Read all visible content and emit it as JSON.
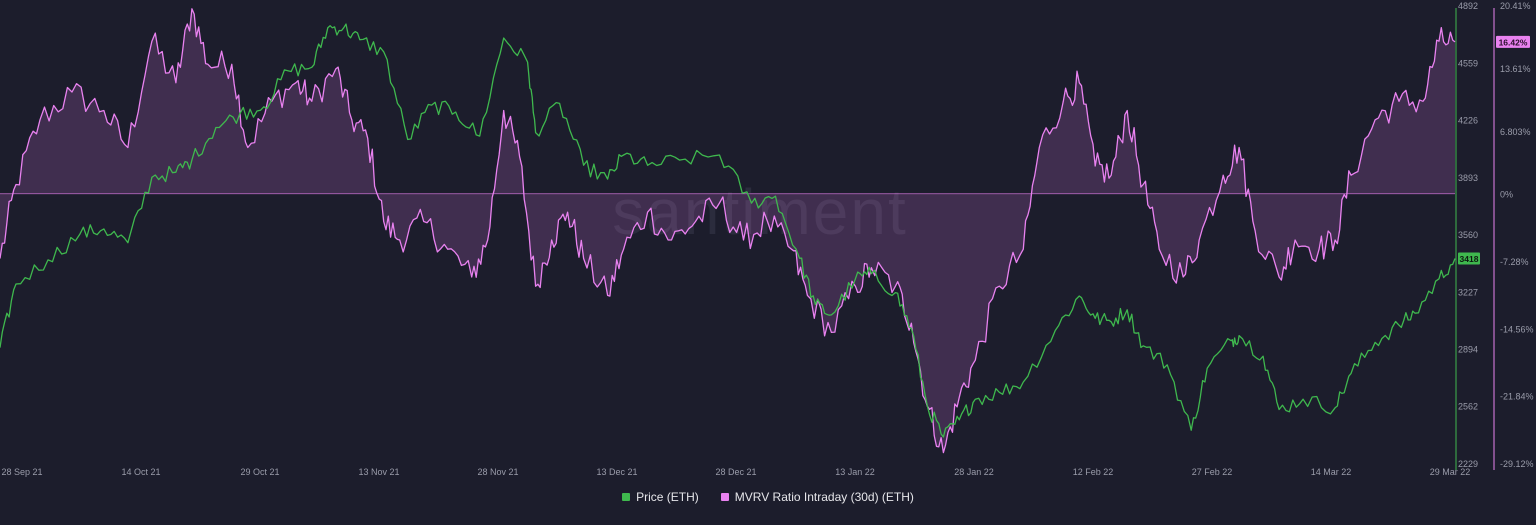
{
  "chart_data": {
    "type": "line",
    "watermark": "santiment",
    "x_tick_labels": [
      "28 Sep 21",
      "14 Oct 21",
      "29 Oct 21",
      "13 Nov 21",
      "28 Nov 21",
      "13 Dec 21",
      "28 Dec 21",
      "13 Jan 22",
      "28 Jan 22",
      "12 Feb 22",
      "27 Feb 22",
      "14 Mar 22",
      "29 Mar 22"
    ],
    "x_range": [
      "2021-09-28",
      "2022-03-29"
    ],
    "left_axis": {
      "series": "Price (ETH)",
      "ticks": [
        4892,
        4559,
        4226,
        3893,
        3560,
        3227,
        2894,
        2562,
        2229
      ],
      "range": [
        2229,
        4892
      ],
      "current_value_label": "3418"
    },
    "right_axis": {
      "series": "MVRV Ratio Intraday (30d) (ETH)",
      "ticks": [
        "20.41%",
        "13.61%",
        "6.803%",
        "0%",
        "-7.28%",
        "-14.56%",
        "-21.84%",
        "-29.12%"
      ],
      "range": [
        -29.12,
        20.41
      ],
      "current_value_label": "16.42%"
    },
    "series": [
      {
        "name": "Price (ETH)",
        "axis": "left",
        "color": "#3fb84e",
        "style": "line",
        "keypoints": [
          [
            "2021-09-28",
            2900
          ],
          [
            "2021-09-30",
            3270
          ],
          [
            "2021-10-04",
            3410
          ],
          [
            "2021-10-08",
            3560
          ],
          [
            "2021-10-11",
            3590
          ],
          [
            "2021-10-14",
            3510
          ],
          [
            "2021-10-17",
            3890
          ],
          [
            "2021-10-20",
            3920
          ],
          [
            "2021-10-22",
            3990
          ],
          [
            "2021-10-25",
            4180
          ],
          [
            "2021-10-28",
            4260
          ],
          [
            "2021-10-31",
            4300
          ],
          [
            "2021-11-03",
            4510
          ],
          [
            "2021-11-06",
            4530
          ],
          [
            "2021-11-08",
            4760
          ],
          [
            "2021-11-10",
            4760
          ],
          [
            "2021-11-12",
            4690
          ],
          [
            "2021-11-15",
            4620
          ],
          [
            "2021-11-18",
            4110
          ],
          [
            "2021-11-21",
            4310
          ],
          [
            "2021-11-24",
            4270
          ],
          [
            "2021-11-27",
            4130
          ],
          [
            "2021-11-30",
            4700
          ],
          [
            "2021-12-03",
            4560
          ],
          [
            "2021-12-04",
            4150
          ],
          [
            "2021-12-07",
            4320
          ],
          [
            "2021-12-10",
            3960
          ],
          [
            "2021-12-13",
            3880
          ],
          [
            "2021-12-15",
            4020
          ],
          [
            "2021-12-18",
            3960
          ],
          [
            "2021-12-22",
            3990
          ],
          [
            "2021-12-27",
            4020
          ],
          [
            "2021-12-31",
            3740
          ],
          [
            "2022-01-03",
            3780
          ],
          [
            "2022-01-06",
            3420
          ],
          [
            "2022-01-08",
            3150
          ],
          [
            "2022-01-10",
            3090
          ],
          [
            "2022-01-13",
            3300
          ],
          [
            "2022-01-15",
            3330
          ],
          [
            "2022-01-18",
            3220
          ],
          [
            "2022-01-20",
            3010
          ],
          [
            "2022-01-22",
            2560
          ],
          [
            "2022-01-24",
            2380
          ],
          [
            "2022-01-26",
            2480
          ],
          [
            "2022-01-28",
            2600
          ],
          [
            "2022-01-31",
            2640
          ],
          [
            "2022-02-03",
            2700
          ],
          [
            "2022-02-07",
            3000
          ],
          [
            "2022-02-10",
            3200
          ],
          [
            "2022-02-12",
            3070
          ],
          [
            "2022-02-14",
            3050
          ],
          [
            "2022-02-16",
            3120
          ],
          [
            "2022-02-18",
            2910
          ],
          [
            "2022-02-21",
            2800
          ],
          [
            "2022-02-24",
            2420
          ],
          [
            "2022-02-26",
            2780
          ],
          [
            "2022-03-01",
            2940
          ],
          [
            "2022-03-02",
            2970
          ],
          [
            "2022-03-05",
            2850
          ],
          [
            "2022-03-07",
            2540
          ],
          [
            "2022-03-10",
            2600
          ],
          [
            "2022-03-14",
            2550
          ],
          [
            "2022-03-16",
            2750
          ],
          [
            "2022-03-19",
            2930
          ],
          [
            "2022-03-22",
            3030
          ],
          [
            "2022-03-24",
            3100
          ],
          [
            "2022-03-27",
            3300
          ],
          [
            "2022-03-29",
            3418
          ]
        ]
      },
      {
        "name": "MVRV Ratio Intraday (30d) (ETH)",
        "axis": "right",
        "color": "#e982f0",
        "style": "area",
        "keypoints": [
          [
            "2021-09-28",
            -7.0
          ],
          [
            "2021-09-30",
            1.0
          ],
          [
            "2021-10-03",
            8.0
          ],
          [
            "2021-10-07",
            11.0
          ],
          [
            "2021-10-11",
            9.0
          ],
          [
            "2021-10-14",
            5.0
          ],
          [
            "2021-10-17",
            16.5
          ],
          [
            "2021-10-20",
            12.0
          ],
          [
            "2021-10-22",
            20.0
          ],
          [
            "2021-10-24",
            14.0
          ],
          [
            "2021-10-27",
            14.0
          ],
          [
            "2021-10-29",
            5.0
          ],
          [
            "2021-11-01",
            10.0
          ],
          [
            "2021-11-04",
            12.0
          ],
          [
            "2021-11-06",
            10.0
          ],
          [
            "2021-11-09",
            13.5
          ],
          [
            "2021-11-11",
            8.0
          ],
          [
            "2021-11-13",
            6.0
          ],
          [
            "2021-11-15",
            -3.0
          ],
          [
            "2021-11-17",
            -5.0
          ],
          [
            "2021-11-20",
            -3.0
          ],
          [
            "2021-11-23",
            -6.0
          ],
          [
            "2021-11-26",
            -9.0
          ],
          [
            "2021-11-28",
            -5.0
          ],
          [
            "2021-11-30",
            9.0
          ],
          [
            "2021-12-02",
            4.0
          ],
          [
            "2021-12-04",
            -10.0
          ],
          [
            "2021-12-06",
            -5.0
          ],
          [
            "2021-12-08",
            -2.0
          ],
          [
            "2021-12-10",
            -7.0
          ],
          [
            "2021-12-13",
            -11.0
          ],
          [
            "2021-12-15",
            -6.0
          ],
          [
            "2021-12-18",
            -2.0
          ],
          [
            "2021-12-21",
            -5.0
          ],
          [
            "2021-12-24",
            -3.0
          ],
          [
            "2021-12-27",
            -1.0
          ],
          [
            "2021-12-30",
            -5.0
          ],
          [
            "2022-01-02",
            -3.0
          ],
          [
            "2022-01-05",
            -6.0
          ],
          [
            "2022-01-07",
            -11.0
          ],
          [
            "2022-01-10",
            -15.0
          ],
          [
            "2022-01-13",
            -10.0
          ],
          [
            "2022-01-15",
            -8.0
          ],
          [
            "2022-01-18",
            -10.0
          ],
          [
            "2022-01-20",
            -14.0
          ],
          [
            "2022-01-22",
            -23.0
          ],
          [
            "2022-01-24",
            -28.0
          ],
          [
            "2022-01-26",
            -22.0
          ],
          [
            "2022-01-28",
            -18.0
          ],
          [
            "2022-01-31",
            -10.0
          ],
          [
            "2022-02-03",
            -6.0
          ],
          [
            "2022-02-05",
            5.0
          ],
          [
            "2022-02-08",
            10.0
          ],
          [
            "2022-02-10",
            12.0
          ],
          [
            "2022-02-12",
            3.0
          ],
          [
            "2022-02-14",
            2.0
          ],
          [
            "2022-02-16",
            9.0
          ],
          [
            "2022-02-18",
            1.0
          ],
          [
            "2022-02-20",
            -6.0
          ],
          [
            "2022-02-23",
            -9.0
          ],
          [
            "2022-02-25",
            -5.0
          ],
          [
            "2022-02-28",
            2.0
          ],
          [
            "2022-03-02",
            5.0
          ],
          [
            "2022-03-04",
            -4.0
          ],
          [
            "2022-03-07",
            -9.0
          ],
          [
            "2022-03-09",
            -5.0
          ],
          [
            "2022-03-12",
            -6.0
          ],
          [
            "2022-03-14",
            -5.0
          ],
          [
            "2022-03-16",
            2.0
          ],
          [
            "2022-03-19",
            8.0
          ],
          [
            "2022-03-22",
            10.0
          ],
          [
            "2022-03-25",
            10.0
          ],
          [
            "2022-03-27",
            16.5
          ],
          [
            "2022-03-29",
            16.42
          ]
        ]
      }
    ],
    "legend": [
      {
        "label": "Price (ETH)",
        "color": "#3fb84e"
      },
      {
        "label": "MVRV Ratio Intraday (30d) (ETH)",
        "color": "#e982f0"
      }
    ],
    "legend_position": "bottom-center",
    "grid": false
  }
}
